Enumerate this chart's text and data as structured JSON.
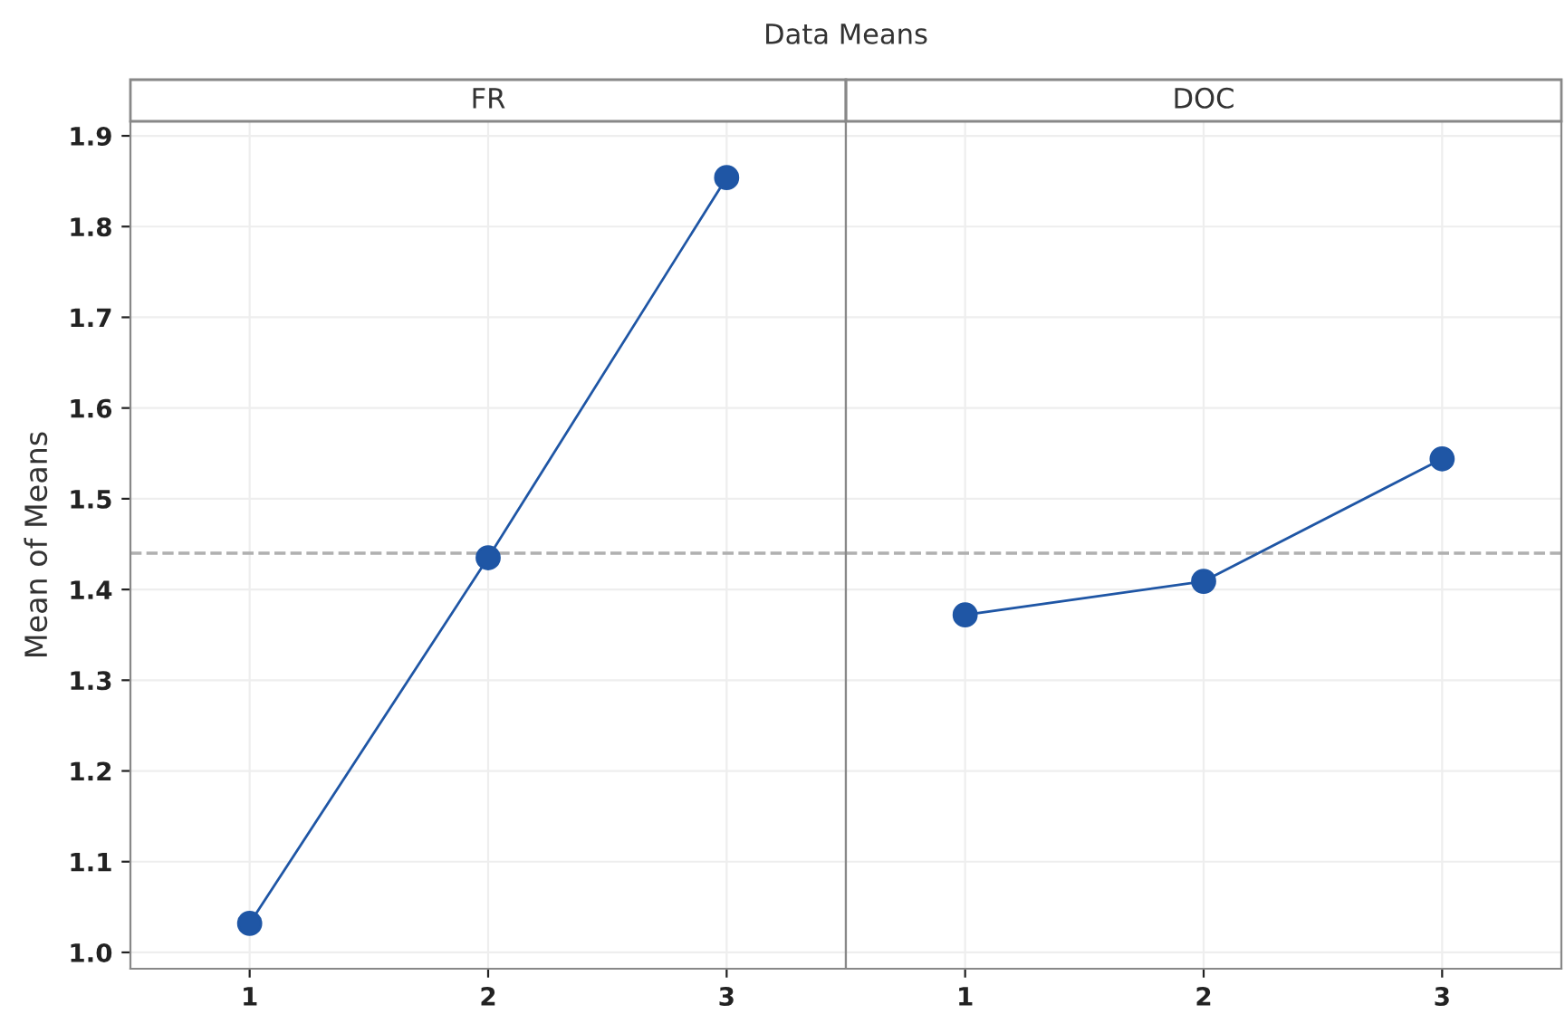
{
  "chart_data": [
    {
      "type": "line",
      "title": "FR",
      "ylabel": "Mean of Means",
      "annotations": [
        "Data Means"
      ],
      "categories": [
        "1",
        "2",
        "3"
      ],
      "series": [
        {
          "color": "#1f56a5",
          "values": [
            1.032,
            1.435,
            1.854
          ]
        }
      ],
      "ylim": [
        0.982,
        1.916
      ],
      "yticks": [
        {
          "value": 1.0,
          "label": "1.0"
        },
        1.1,
        1.2,
        1.3,
        1.4,
        1.5,
        1.6,
        1.7,
        1.8,
        1.9
      ],
      "ref_lines": [
        {
          "axis": "y",
          "value": 1.44,
          "color": "#b0b0b0",
          "line_style": "dashed"
        }
      ],
      "grid": true,
      "marker": "circle",
      "line_style": "solid"
    },
    {
      "type": "line",
      "title": "DOC",
      "categories": [
        "1",
        "2",
        "3"
      ],
      "series": [
        {
          "color": "#1f56a5",
          "values": [
            1.372,
            1.409,
            1.544
          ]
        }
      ],
      "ylim": [
        0.982,
        1.916
      ],
      "yticks": [
        1,
        1.1,
        1.2,
        1.3,
        1.4,
        1.5,
        1.6,
        1.7,
        1.8,
        1.9
      ],
      "ref_lines": [
        {
          "axis": "y",
          "value": 1.44,
          "color": "#b0b0b0",
          "line_style": "dashed"
        }
      ],
      "grid": true,
      "marker": "circle",
      "line_style": "solid",
      "tick_labels": "x"
    }
  ]
}
